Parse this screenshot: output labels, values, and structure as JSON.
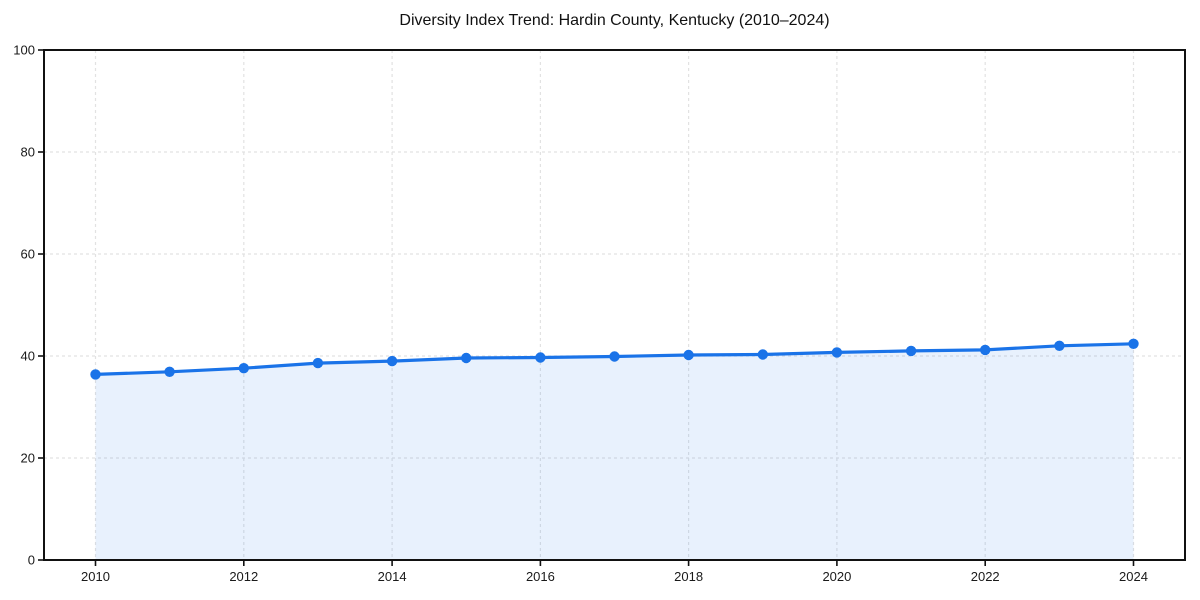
{
  "title": "Diversity Index Trend: Hardin County, Kentucky (2010–2024)",
  "chart_data": {
    "type": "line",
    "title": "Diversity Index Trend: Hardin County, Kentucky (2010–2024)",
    "x": [
      2010,
      2011,
      2012,
      2013,
      2014,
      2015,
      2016,
      2017,
      2018,
      2019,
      2020,
      2021,
      2022,
      2023,
      2024
    ],
    "values": [
      36.4,
      36.9,
      37.6,
      38.6,
      39.0,
      39.6,
      39.7,
      39.9,
      40.2,
      40.3,
      40.7,
      41.0,
      41.2,
      42.0,
      42.4
    ],
    "x_ticks": [
      2010,
      2012,
      2014,
      2016,
      2018,
      2020,
      2022,
      2024
    ],
    "y_ticks": [
      0,
      20,
      40,
      60,
      80,
      100
    ],
    "ylim": [
      0,
      100
    ],
    "xlabel": "",
    "ylabel": "",
    "grid": true,
    "grid_style": "dashed",
    "legend": "none",
    "area_fill": true,
    "marker": "circle",
    "line_color": "#1a73e8",
    "fill_color": "rgba(26,115,232,0.10)",
    "grid_color": "#e2e2e2",
    "axis_color": "#111111",
    "text_color": "#1a1a1a"
  }
}
